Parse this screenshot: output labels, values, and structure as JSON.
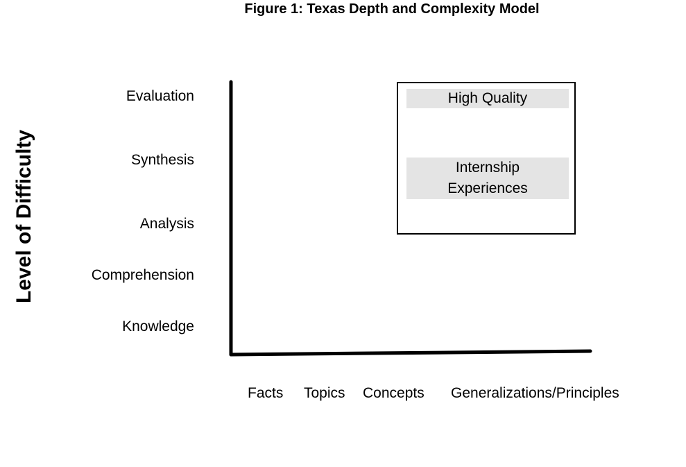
{
  "title": "Figure 1: Texas Depth and Complexity Model",
  "y_axis_label": "Level of Difficulty",
  "levels": [
    "Evaluation",
    "Synthesis",
    "Analysis",
    "Comprehension",
    "Knowledge"
  ],
  "categories": [
    "Facts",
    "Topics",
    "Concepts",
    "Generalizations/Principles"
  ],
  "callout": {
    "line_1": "High Quality",
    "line_2a": "Internship",
    "line_2b": "Experiences"
  },
  "colors": {
    "axis": "#000000",
    "band": "#e4e4e4",
    "text": "#000000"
  }
}
